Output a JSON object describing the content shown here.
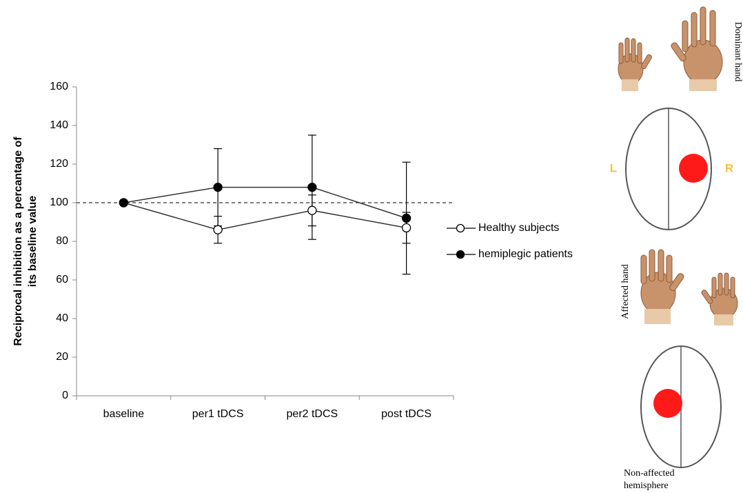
{
  "chart_data": {
    "type": "line",
    "ylabel": [
      "Reciprocal inhibition as a percantage of",
      "its baseline value"
    ],
    "categories": [
      "baseline",
      "per1 tDCS",
      "per2 tDCS",
      "post tDCS"
    ],
    "series": [
      {
        "name": "Healthy subjects",
        "color": "#ffffff",
        "values": [
          100,
          86,
          96,
          87
        ],
        "errors": [
          null,
          7,
          8,
          8
        ]
      },
      {
        "name": "hemiplegic patients",
        "color": "#000000",
        "values": [
          100,
          108,
          108,
          92
        ],
        "errors": [
          null,
          20,
          27,
          29
        ]
      }
    ],
    "ylim": [
      0,
      160
    ],
    "yticks": [
      0,
      20,
      40,
      60,
      80,
      100,
      120,
      140,
      160
    ],
    "hline": 100,
    "grid": false,
    "legend": "right"
  },
  "illustration": {
    "dominant_hand": "Dominant hand",
    "left": "L",
    "right": "R",
    "affected_hand": "Affected hand",
    "non_affected": [
      "Non-affected",
      "hemisphere"
    ]
  }
}
